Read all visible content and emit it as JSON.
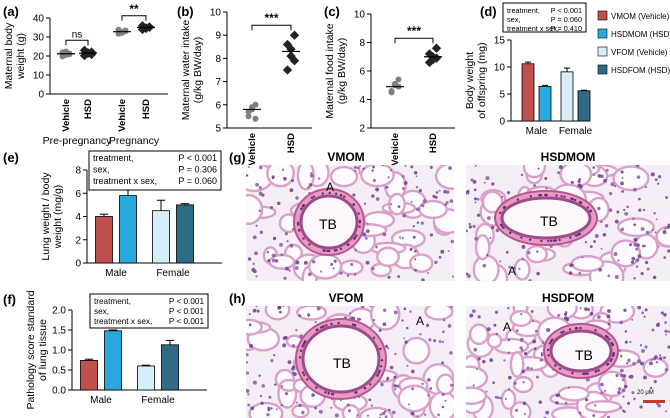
{
  "panels": {
    "a": "(a)",
    "b": "(b)",
    "c": "(c)",
    "d": "(d)",
    "e": "(e)",
    "f": "(f)",
    "g": "(g)",
    "h": "(h)"
  },
  "colors": {
    "VMOM": "#c0504d",
    "HSDMOM": "#29a8e0",
    "VFOM": "#d6eef8",
    "HSDFOM": "#2f6b86",
    "vehicle_dot": "#7f7f7f",
    "hsd_dot": "#222222"
  },
  "chart_data": [
    {
      "id": "a",
      "type": "scatter",
      "ylabel": "Maternal body weight (g)",
      "ylim": [
        0,
        40
      ],
      "yticks": [
        0,
        10,
        20,
        30,
        40
      ],
      "groups": [
        "Pre-pregnancy",
        "Pregnancy"
      ],
      "categories": [
        "Vehicle",
        "HSD",
        "Vehicle",
        "HSD"
      ],
      "points": [
        [
          19.8,
          20.6,
          21.3,
          21.9,
          22.4,
          20.9
        ],
        [
          20.2,
          21.4,
          22.1,
          23.0,
          21.7,
          20.8
        ],
        [
          31.8,
          32.6,
          33.4,
          33.9,
          32.2,
          33.0
        ],
        [
          34.0,
          34.8,
          35.3,
          35.9,
          34.5,
          35.1
        ]
      ],
      "means": [
        21.2,
        21.5,
        32.8,
        35.0
      ],
      "significance": [
        {
          "pair": [
            0,
            1
          ],
          "label": "ns"
        },
        {
          "pair": [
            2,
            3
          ],
          "label": "**"
        }
      ]
    },
    {
      "id": "b",
      "type": "scatter",
      "ylabel": "Maternal water intake (g/kg BW/day)",
      "ylim": [
        5,
        10
      ],
      "yticks": [
        5,
        6,
        7,
        8,
        9,
        10
      ],
      "categories": [
        "Vehicle",
        "HSD"
      ],
      "points": [
        [
          5.5,
          5.8,
          6.0,
          5.7,
          5.9,
          5.4
        ],
        [
          7.5,
          8.4,
          9.0,
          8.6,
          8.1,
          7.9
        ]
      ],
      "means": [
        5.8,
        8.3
      ],
      "significance": [
        {
          "pair": [
            0,
            1
          ],
          "label": "***"
        }
      ]
    },
    {
      "id": "c",
      "type": "scatter",
      "ylabel": "Maternal food intake (g/kg BW/day)",
      "ylim": [
        2,
        10
      ],
      "yticks": [
        2,
        4,
        6,
        8,
        10
      ],
      "categories": [
        "Vehicle",
        "HSD"
      ],
      "points": [
        [
          4.6,
          5.0,
          5.4,
          4.5,
          5.1,
          4.9
        ],
        [
          6.6,
          7.0,
          7.6,
          7.2,
          6.8,
          6.9
        ]
      ],
      "means": [
        4.9,
        7.0
      ],
      "significance": [
        {
          "pair": [
            0,
            1
          ],
          "label": "***"
        }
      ]
    },
    {
      "id": "d",
      "type": "bar",
      "ylabel": "Body weight of offspring (mg)",
      "ylim": [
        0,
        15
      ],
      "yticks": [
        0,
        5,
        10,
        15
      ],
      "groups": [
        "Male",
        "Female"
      ],
      "series": [
        {
          "name": "VMOM (Vehicle)",
          "group": 0,
          "color": "#c0504d",
          "value": 10.6,
          "err": 0.3
        },
        {
          "name": "HSDMOM (HSD)",
          "group": 0,
          "color": "#29a8e0",
          "value": 6.4,
          "err": 0.2
        },
        {
          "name": "VFOM  (Vehicle)",
          "group": 1,
          "color": "#d6eef8",
          "value": 9.1,
          "err": 0.7
        },
        {
          "name": "HSDFOM (HSD)",
          "group": 1,
          "color": "#2f6b86",
          "value": 5.6,
          "err": 0.1
        }
      ],
      "stats": [
        [
          "treatment,",
          "P < 0.001"
        ],
        [
          "sex,",
          "P = 0.060"
        ],
        [
          "treatment x sex,",
          "P = 0.410"
        ]
      ]
    },
    {
      "id": "e",
      "type": "bar",
      "ylabel": "Lung weight / body weight (mg/g)",
      "ylim": [
        0,
        8
      ],
      "yticks": [
        0,
        2,
        4,
        6,
        8
      ],
      "groups": [
        "Male",
        "Female"
      ],
      "series": [
        {
          "name": "VMOM",
          "group": 0,
          "color": "#c0504d",
          "value": 4.0,
          "err": 0.2
        },
        {
          "name": "HSDMOM",
          "group": 0,
          "color": "#29a8e0",
          "value": 5.8,
          "err": 0.6
        },
        {
          "name": "VFOM",
          "group": 1,
          "color": "#d6eef8",
          "value": 4.5,
          "err": 0.9
        },
        {
          "name": "HSDFOM",
          "group": 1,
          "color": "#2f6b86",
          "value": 5.0,
          "err": 0.1
        }
      ],
      "stats": [
        [
          "treatment,",
          "P < 0.001"
        ],
        [
          "sex,",
          "P = 0.306"
        ],
        [
          "treatment x sex,",
          "P = 0.060"
        ]
      ]
    },
    {
      "id": "f",
      "type": "bar",
      "ylabel": "Pathology score standard of lung tissue",
      "ylim": [
        0,
        2.0
      ],
      "yticks": [
        0,
        0.5,
        1.0,
        1.5,
        2.0
      ],
      "yticklabels": [
        "0.0",
        "0.5",
        "1.0",
        "1.5",
        "2.0"
      ],
      "groups": [
        "Male",
        "Female"
      ],
      "series": [
        {
          "name": "VMOM",
          "group": 0,
          "color": "#c0504d",
          "value": 0.74,
          "err": 0.03
        },
        {
          "name": "HSDMOM",
          "group": 0,
          "color": "#29a8e0",
          "value": 1.48,
          "err": 0.02
        },
        {
          "name": "VFOM",
          "group": 1,
          "color": "#d6eef8",
          "value": 0.6,
          "err": 0.02
        },
        {
          "name": "HSDFOM",
          "group": 1,
          "color": "#2f6b86",
          "value": 1.13,
          "err": 0.11
        }
      ],
      "stats": [
        [
          "treatment,",
          "P < 0.001"
        ],
        [
          "sex,",
          "P < 0.001"
        ],
        [
          "treatment x sex,",
          "P < 0.001"
        ]
      ]
    }
  ],
  "micrographs": {
    "g_left_title": "VMOM",
    "g_right_title": "HSDMOM",
    "h_left_title": "VFOM",
    "h_right_title": "HSDFOM",
    "labels": {
      "tb": "TB",
      "a": "A"
    },
    "scale_bar": "20 μM"
  }
}
